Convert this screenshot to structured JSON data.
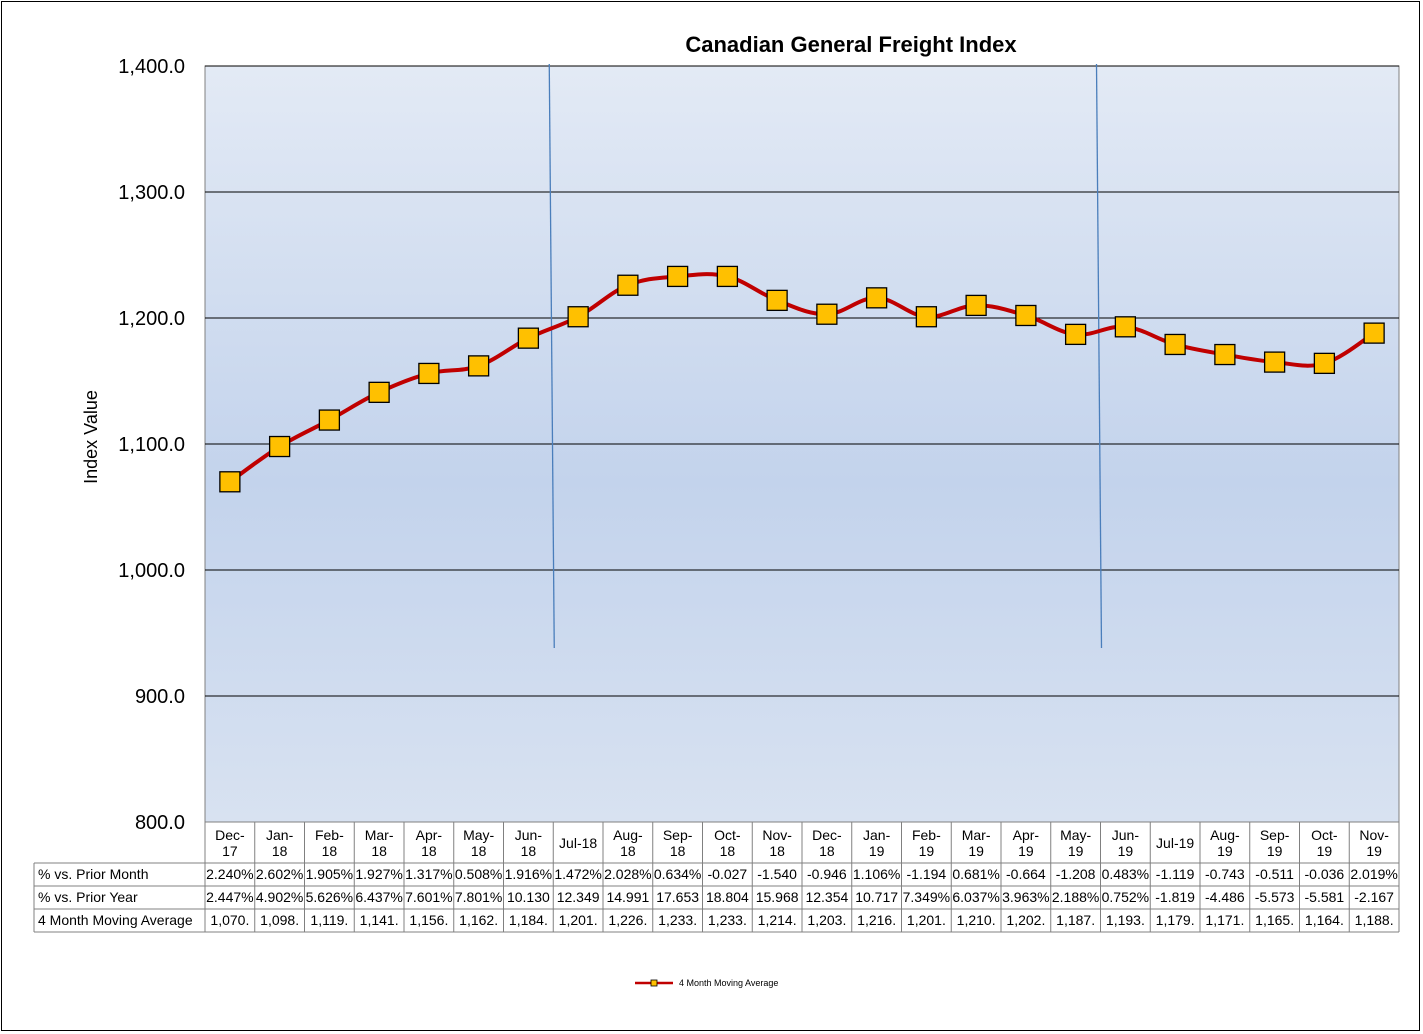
{
  "chart_data": {
    "type": "line",
    "title": "Canadian General Freight Index",
    "ylabel": "Index Value",
    "ylim": [
      800,
      1400
    ],
    "yticks": [
      "1,400.0",
      "1,300.0",
      "1,200.0",
      "1,100.0",
      "1,000.0",
      "900.0",
      "800.0"
    ],
    "ytick_values": [
      1400,
      1300,
      1200,
      1100,
      1000,
      900,
      800
    ],
    "grid": true,
    "legend_position": "bottom-center",
    "categories": [
      [
        "Dec-",
        "17"
      ],
      [
        "Jan-",
        "18"
      ],
      [
        "Feb-",
        "18"
      ],
      [
        "Mar-",
        "18"
      ],
      [
        "Apr-",
        "18"
      ],
      [
        "May-",
        "18"
      ],
      [
        "Jun-",
        "18"
      ],
      [
        "Jul-18"
      ],
      [
        "Aug-",
        "18"
      ],
      [
        "Sep-",
        "18"
      ],
      [
        "Oct-",
        "18"
      ],
      [
        "Nov-",
        "18"
      ],
      [
        "Dec-",
        "18"
      ],
      [
        "Jan-",
        "19"
      ],
      [
        "Feb-",
        "19"
      ],
      [
        "Mar-",
        "19"
      ],
      [
        "Apr-",
        "19"
      ],
      [
        "May-",
        "19"
      ],
      [
        "Jun-",
        "19"
      ],
      [
        "Jul-19"
      ],
      [
        "Aug-",
        "19"
      ],
      [
        "Sep-",
        "19"
      ],
      [
        "Oct-",
        "19"
      ],
      [
        "Nov-",
        "19"
      ]
    ],
    "series": [
      {
        "name": "4 Month Moving Average",
        "color": "#c00000",
        "marker_color": "#ffc000",
        "values": [
          1070,
          1098,
          1119,
          1141,
          1156,
          1162,
          1184,
          1201,
          1226,
          1233,
          1233,
          1214,
          1203,
          1216,
          1201,
          1210,
          1202,
          1187,
          1193,
          1179,
          1171,
          1165,
          1164,
          1188
        ]
      }
    ],
    "vertical_lines_after": [
      "Jun-18",
      "May-19"
    ],
    "table": {
      "rows": [
        {
          "label": "% vs. Prior Month",
          "cells": [
            "2.240%",
            "2.602%",
            "1.905%",
            "1.927%",
            "1.317%",
            "0.508%",
            "1.916%",
            "1.472%",
            "2.028%",
            "0.634%",
            "-0.027",
            "-1.540",
            "-0.946",
            "1.106%",
            "-1.194",
            "0.681%",
            "-0.664",
            "-1.208",
            "0.483%",
            "-1.119",
            "-0.743",
            "-0.511",
            "-0.036",
            "2.019%"
          ]
        },
        {
          "label": "% vs. Prior Year",
          "cells": [
            "2.447%",
            "4.902%",
            "5.626%",
            "6.437%",
            "7.601%",
            "7.801%",
            "10.130",
            "12.349",
            "14.991",
            "17.653",
            "18.804",
            "15.968",
            "12.354",
            "10.717",
            "7.349%",
            "6.037%",
            "3.963%",
            "2.188%",
            "0.752%",
            "-1.819",
            "-4.486",
            "-5.573",
            "-5.581",
            "-2.167"
          ]
        },
        {
          "label": "4 Month Moving Average",
          "cells": [
            "1,070.",
            "1,098.",
            "1,119.",
            "1,141.",
            "1,156.",
            "1,162.",
            "1,184.",
            "1,201.",
            "1,226.",
            "1,233.",
            "1,233.",
            "1,214.",
            "1,203.",
            "1,216.",
            "1,201.",
            "1,210.",
            "1,202.",
            "1,187.",
            "1,193.",
            "1,179.",
            "1,171.",
            "1,165.",
            "1,164.",
            "1,188."
          ]
        }
      ]
    },
    "legend": [
      {
        "label": "4 Month Moving Average",
        "color": "#c00000"
      }
    ]
  }
}
